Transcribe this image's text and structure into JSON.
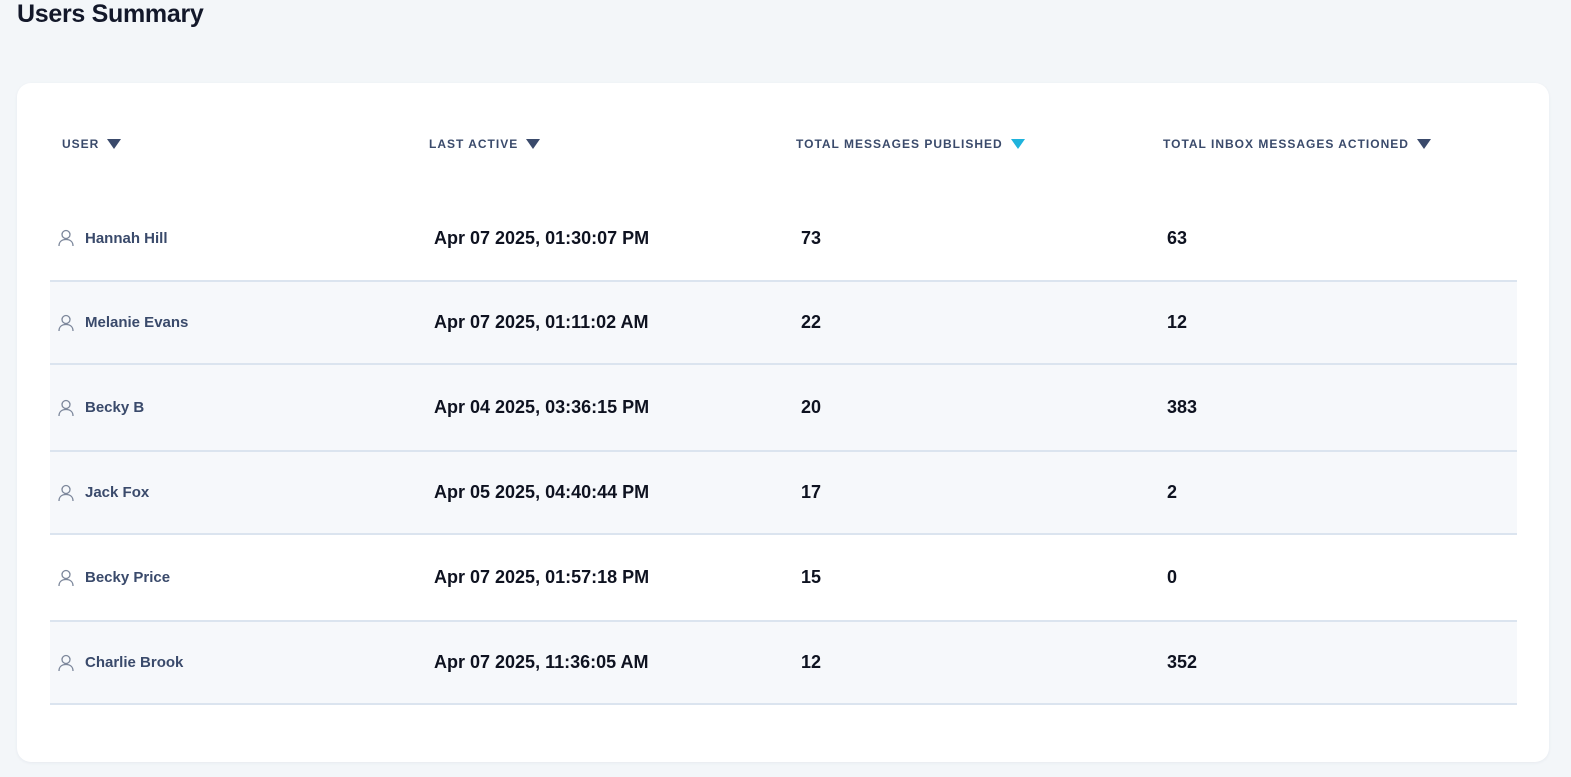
{
  "page": {
    "title": "Users Summary"
  },
  "table": {
    "columns": [
      {
        "key": "user",
        "label": "USER",
        "active": false
      },
      {
        "key": "last_active",
        "label": "LAST ACTIVE",
        "active": false
      },
      {
        "key": "published",
        "label": "TOTAL MESSAGES PUBLISHED",
        "active": true
      },
      {
        "key": "actioned",
        "label": "TOTAL INBOX MESSAGES ACTIONED",
        "active": false
      }
    ],
    "rows": [
      {
        "name": "Hannah Hill",
        "last_active": "Apr 07 2025, 01:30:07 PM",
        "published": "73",
        "actioned": "63"
      },
      {
        "name": "Melanie Evans",
        "last_active": "Apr 07 2025, 01:11:02 AM",
        "published": "22",
        "actioned": "12"
      },
      {
        "name": "Becky B",
        "last_active": "Apr 04 2025, 03:36:15 PM",
        "published": "20",
        "actioned": "383"
      },
      {
        "name": "Jack Fox",
        "last_active": "Apr 05 2025, 04:40:44 PM",
        "published": "17",
        "actioned": "2"
      },
      {
        "name": "Becky Price",
        "last_active": "Apr 07 2025, 01:57:18 PM",
        "published": "15",
        "actioned": "0"
      },
      {
        "name": "Charlie Brook",
        "last_active": "Apr 07 2025, 11:36:05 AM",
        "published": "12",
        "actioned": "352"
      }
    ]
  },
  "icons": {
    "row_icon": "user-icon",
    "sort_icon": "caret-down-icon"
  },
  "colors": {
    "accent": "#1fb3dc",
    "header_text": "#3a4a6b",
    "row_alt": "#f6f8fb"
  }
}
